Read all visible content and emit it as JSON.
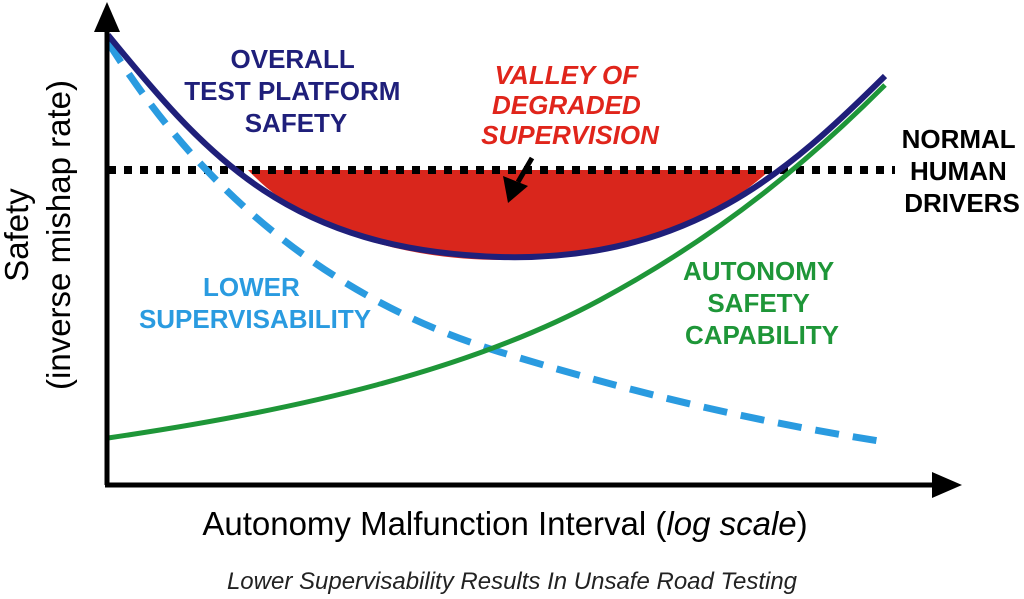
{
  "figure": {
    "caption": "Lower Supervisability Results In Unsafe Road Testing",
    "x_axis_label_main": "Autonomy Malfunction Interval (",
    "x_axis_label_italic": "log scale",
    "x_axis_label_end": ")",
    "y_axis_label_line1": "Safety",
    "y_axis_label_line2": "(inverse mishap rate)"
  },
  "curves": {
    "overall": {
      "label_lines": [
        "OVERALL",
        "TEST PLATFORM",
        "SAFETY"
      ],
      "color": "#1f1f7a"
    },
    "supervisability": {
      "label_lines": [
        "LOWER",
        "SUPERVISABILITY"
      ],
      "color": "#2a9be0"
    },
    "autonomy": {
      "label_lines": [
        "AUTONOMY",
        "SAFETY",
        "CAPABILITY"
      ],
      "color": "#1e9638"
    },
    "human": {
      "label_lines": [
        "NORMAL",
        "HUMAN",
        "DRIVERS"
      ],
      "color": "#000000"
    }
  },
  "valley": {
    "label_lines": [
      "VALLEY OF",
      "DEGRADED",
      "SUPERVISION"
    ],
    "color": "#e0251b",
    "fill": "#d9261c"
  }
}
